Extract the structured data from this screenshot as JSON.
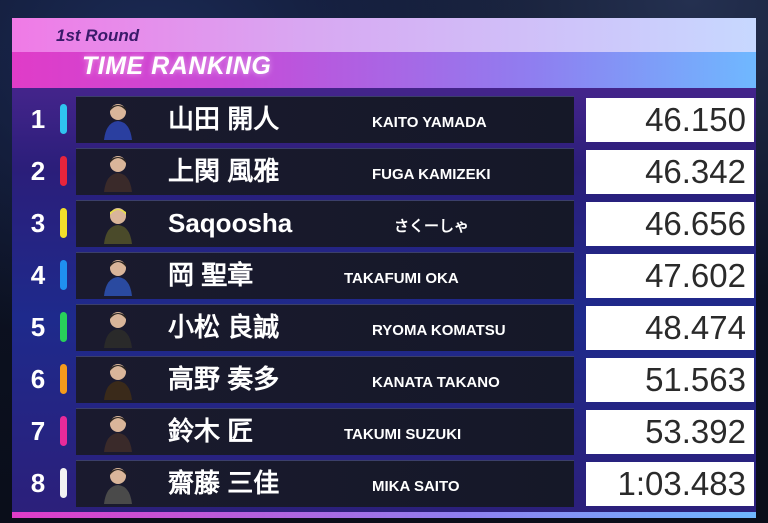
{
  "header": {
    "round": "1st Round",
    "title": "TIME RANKING"
  },
  "rows": [
    {
      "rank": "1",
      "name_jp": "山田 開人",
      "name_en": "KAITO YAMADA",
      "time": "46.150",
      "color": "#2fc4f0",
      "en_left": 296
    },
    {
      "rank": "2",
      "name_jp": "上関 風雅",
      "name_en": "FUGA KAMIZEKI",
      "time": "46.342",
      "color": "#e8243c",
      "en_left": 296
    },
    {
      "rank": "3",
      "name_jp": "Saqoosha",
      "name_en": "さくーしゃ",
      "time": "46.656",
      "color": "#f2de2a",
      "en_left": 318
    },
    {
      "rank": "4",
      "name_jp": "岡 聖章",
      "name_en": "TAKAFUMI OKA",
      "time": "47.602",
      "color": "#1f8ff0",
      "en_left": 268
    },
    {
      "rank": "5",
      "name_jp": "小松 良誠",
      "name_en": "RYOMA KOMATSU",
      "time": "48.474",
      "color": "#28d05a",
      "en_left": 296
    },
    {
      "rank": "6",
      "name_jp": "高野 奏多",
      "name_en": "KANATA TAKANO",
      "time": "51.563",
      "color": "#f59a1c",
      "en_left": 296
    },
    {
      "rank": "7",
      "name_jp": "鈴木 匠",
      "name_en": "TAKUMI SUZUKI",
      "time": "53.392",
      "color": "#e82a9a",
      "en_left": 268
    },
    {
      "rank": "8",
      "name_jp": "齋藤 三佳",
      "name_en": "MIKA SAITO",
      "time": "1:03.483",
      "color": "#f2f2f2",
      "en_left": 296
    }
  ]
}
